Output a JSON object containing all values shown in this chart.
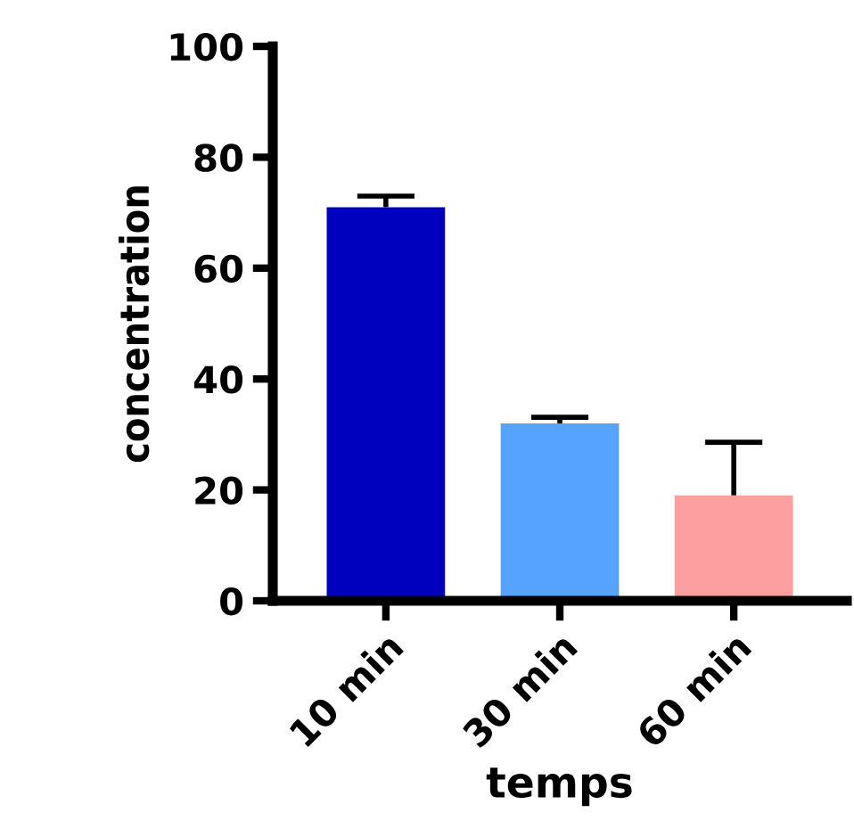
{
  "chart_data": {
    "type": "bar",
    "xlabel": "temps",
    "ylabel": "concentration",
    "categories": [
      "10 min",
      "30 min",
      "60 min"
    ],
    "values": [
      71,
      32,
      19
    ],
    "colors": [
      "#0000bf",
      "#56a3fd",
      "#fd9fa1"
    ],
    "errors": [
      [
        71,
        73
      ],
      [
        32,
        33.1
      ],
      [
        19,
        28.6
      ]
    ],
    "ylim": [
      0,
      100
    ],
    "yticks": [
      0,
      20,
      40,
      60,
      80,
      100
    ],
    "grid": false
  }
}
